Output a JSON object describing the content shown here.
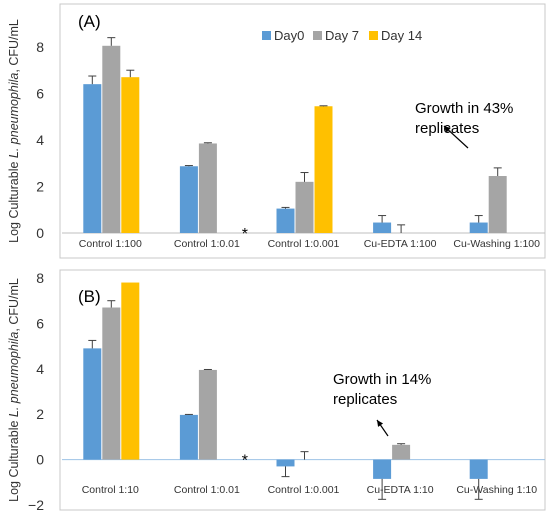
{
  "colors": {
    "day0": "#5B9BD5",
    "day7": "#A5A5A5",
    "day14": "#FFC000",
    "frame": "#c8c8c8",
    "text": "#333333"
  },
  "ylabel_parts": [
    "Log Culturable ",
    "L. pneumophila",
    ", CFU/mL"
  ],
  "chart_data": [
    {
      "type": "bar",
      "panel_label": "(A)",
      "categories": [
        "Control 1:100",
        "Control 1:0.01",
        "Control 1:0.001",
        "Cu-EDTA 1:100",
        "Cu-Washing 1:100"
      ],
      "series": [
        {
          "name": "Day0",
          "values": [
            6.4,
            2.87,
            1.05,
            0.45,
            0.45
          ],
          "errors": [
            0.35,
            0.03,
            0.05,
            0.3,
            0.3
          ]
        },
        {
          "name": "Day 7",
          "values": [
            8.05,
            3.85,
            2.2,
            0.0,
            2.45
          ],
          "errors": [
            0.35,
            0.03,
            0.4,
            0.35,
            0.35
          ]
        },
        {
          "name": "Day 14",
          "values": [
            6.7,
            null,
            5.45,
            null,
            null
          ],
          "errors": [
            0.3,
            0,
            0.02,
            0,
            0
          ]
        }
      ],
      "yticks": [
        0,
        2,
        4,
        6,
        8
      ],
      "ylim": [
        0,
        8.6
      ],
      "ylabel": "Log Culturable L. pneumophila, CFU/mL",
      "legend": "top-center",
      "star": {
        "text": "*",
        "category_index": 1
      },
      "annotation": {
        "lines": [
          "Growth in 43%",
          "replicates"
        ],
        "category_index": 4
      }
    },
    {
      "type": "bar",
      "panel_label": "(B)",
      "categories": [
        "Control 1:10",
        "Control 1:0.01",
        "Control 1:0.001",
        "Cu-EDTA 1:10",
        "Cu-Washing 1:10"
      ],
      "series": [
        {
          "name": "Day0",
          "values": [
            4.9,
            1.97,
            -0.3,
            -0.85,
            -0.85
          ],
          "errors": [
            0.35,
            0.02,
            0.45,
            0.9,
            0.9
          ]
        },
        {
          "name": "Day 7",
          "values": [
            6.7,
            3.95,
            0.0,
            0.65,
            0.0
          ],
          "errors": [
            0.3,
            0.02,
            0.35,
            0.05,
            0.0
          ]
        },
        {
          "name": "Day 14",
          "values": [
            7.8,
            null,
            null,
            null,
            null
          ],
          "errors": [
            0,
            0,
            0,
            0,
            0
          ]
        }
      ],
      "yticks": [
        -2,
        0,
        2,
        4,
        6,
        8
      ],
      "ylim": [
        -2,
        8
      ],
      "ylabel": "Log Culturable L. pneumophila, CFU/mL",
      "star": {
        "text": "*",
        "category_index": 1
      },
      "annotation": {
        "lines": [
          "Growth in 14%",
          "replicates"
        ],
        "category_index": 3
      }
    }
  ]
}
